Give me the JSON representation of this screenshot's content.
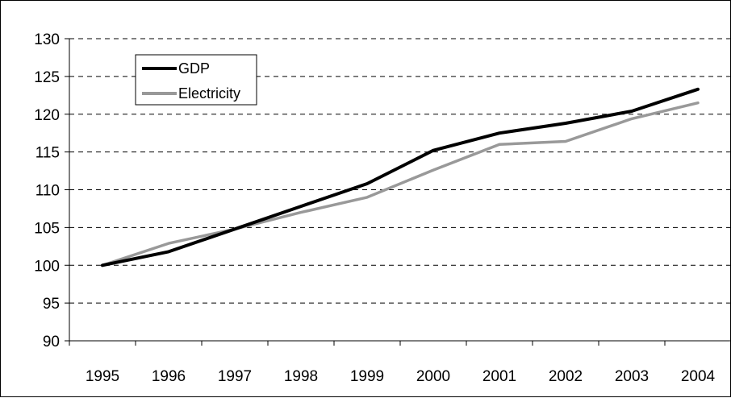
{
  "chart_data": {
    "type": "line",
    "title": "",
    "xlabel": "",
    "ylabel": "",
    "x": [
      "1995",
      "1996",
      "1997",
      "1998",
      "1999",
      "2000",
      "2001",
      "2002",
      "2003",
      "2004"
    ],
    "ylim": [
      90,
      130
    ],
    "yticks": [
      90,
      95,
      100,
      105,
      110,
      115,
      120,
      125,
      130
    ],
    "grid": true,
    "legend_position": "top-left",
    "series": [
      {
        "name": "GDP",
        "color": "#000000",
        "values": [
          100,
          101.8,
          104.8,
          107.8,
          110.8,
          115.2,
          117.5,
          118.8,
          120.4,
          123.3
        ]
      },
      {
        "name": "Electricity",
        "color": "#999999",
        "values": [
          100,
          102.9,
          104.8,
          107.0,
          109.0,
          112.6,
          116.0,
          116.4,
          119.4,
          121.5
        ]
      }
    ]
  }
}
